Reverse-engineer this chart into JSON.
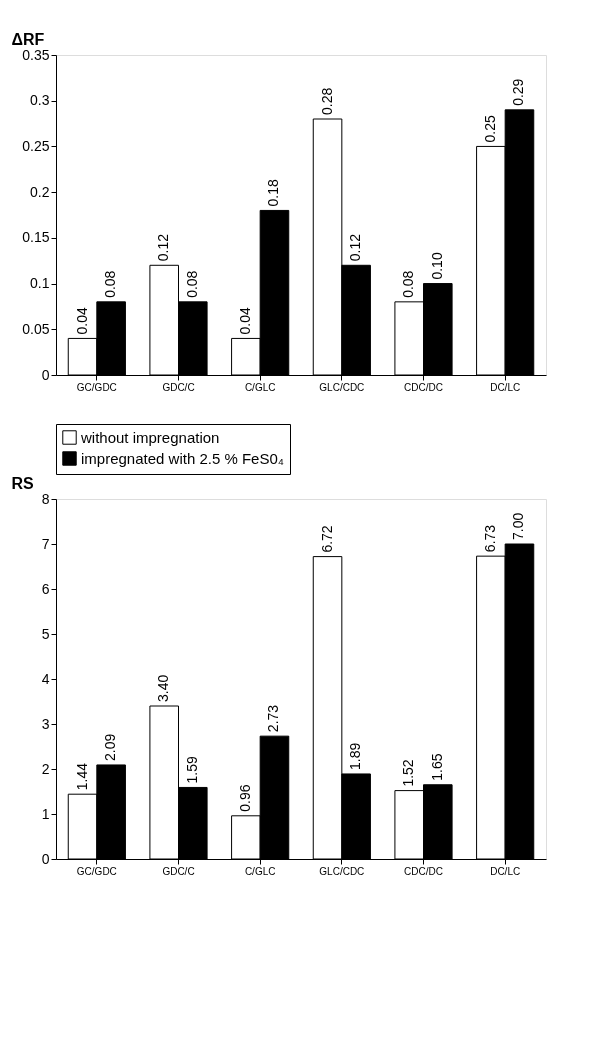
{
  "chart_data": [
    {
      "type": "bar",
      "ylabel": "ΔRF",
      "categories": [
        "GC/GDC",
        "GDC/C",
        "C/GLC",
        "GLC/CDC",
        "CDC/DC",
        "DC/LC"
      ],
      "ylim": [
        0,
        0.35
      ],
      "yticks": [
        0,
        0.05,
        0.1,
        0.15,
        0.2,
        0.25,
        0.3,
        0.35
      ],
      "grid": false,
      "series": [
        {
          "color": "#ffffff",
          "values": [
            0.04,
            0.12,
            0.04,
            0.28,
            0.08,
            0.25
          ],
          "value_labels": [
            "0.04",
            "0.12",
            "0.04",
            "0.28",
            "0.08",
            "0.25"
          ]
        },
        {
          "color": "#000000",
          "values": [
            0.08,
            0.08,
            0.18,
            0.12,
            0.1,
            0.29
          ],
          "value_labels": [
            "0.08",
            "0.08",
            "0.18",
            "0.12",
            "0.10",
            "0.29"
          ]
        }
      ]
    },
    {
      "type": "bar",
      "ylabel": "RS",
      "categories": [
        "GC/GDC",
        "GDC/C",
        "C/GLC",
        "GLC/CDC",
        "CDC/DC",
        "DC/LC"
      ],
      "ylim": [
        0,
        8
      ],
      "yticks": [
        0,
        1,
        2,
        3,
        4,
        5,
        6,
        7,
        8
      ],
      "grid": false,
      "legend": "top",
      "series": [
        {
          "name": "without impregnation",
          "color": "#ffffff",
          "values": [
            1.44,
            3.4,
            0.96,
            6.72,
            1.52,
            6.73
          ],
          "value_labels": [
            "1.44",
            "3.40",
            "0.96",
            "6.72",
            "1.52",
            "6.73"
          ]
        },
        {
          "name": "impregnated with 2.5 % FeS0₄",
          "color": "#000000",
          "values": [
            2.09,
            1.59,
            2.73,
            1.89,
            1.65,
            7.0
          ],
          "value_labels": [
            "2.09",
            "1.59",
            "2.73",
            "1.89",
            "1.65",
            "7.00"
          ]
        }
      ]
    }
  ]
}
